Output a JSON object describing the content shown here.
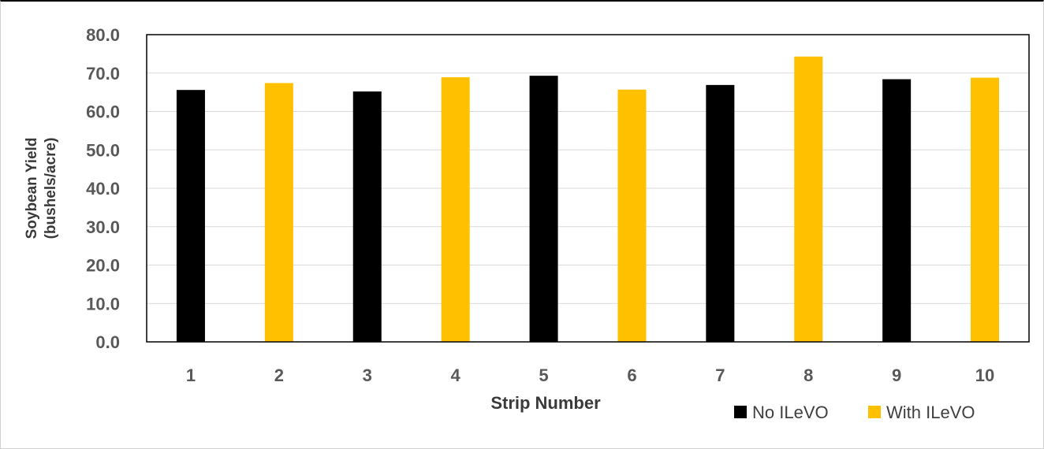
{
  "chart_data": {
    "type": "bar",
    "categories": [
      "1",
      "2",
      "3",
      "4",
      "5",
      "6",
      "7",
      "8",
      "9",
      "10"
    ],
    "values": [
      65.6,
      67.4,
      65.2,
      68.9,
      69.3,
      65.7,
      66.9,
      74.3,
      68.4,
      68.8
    ],
    "treatment": [
      "No ILeVO",
      "With ILeVO",
      "No ILeVO",
      "With ILeVO",
      "No ILeVO",
      "With ILeVO",
      "No ILeVO",
      "With ILeVO",
      "No ILeVO",
      "With ILeVO"
    ],
    "series_colors": {
      "No ILeVO": "#000000",
      "With ILeVO": "#FFC000"
    },
    "xlabel": "Strip Number",
    "ylabel_lines": [
      "Soybean Yield",
      "(bushels/acre)"
    ],
    "ylim": [
      0,
      80
    ],
    "yticks": [
      "0.0",
      "10.0",
      "20.0",
      "30.0",
      "40.0",
      "50.0",
      "60.0",
      "70.0",
      "80.0"
    ],
    "grid": true,
    "legend": {
      "position": "bottom-right",
      "entries": [
        {
          "label": "No ILeVO",
          "color": "#000000"
        },
        {
          "label": "With ILeVO",
          "color": "#FFC000"
        }
      ]
    }
  }
}
